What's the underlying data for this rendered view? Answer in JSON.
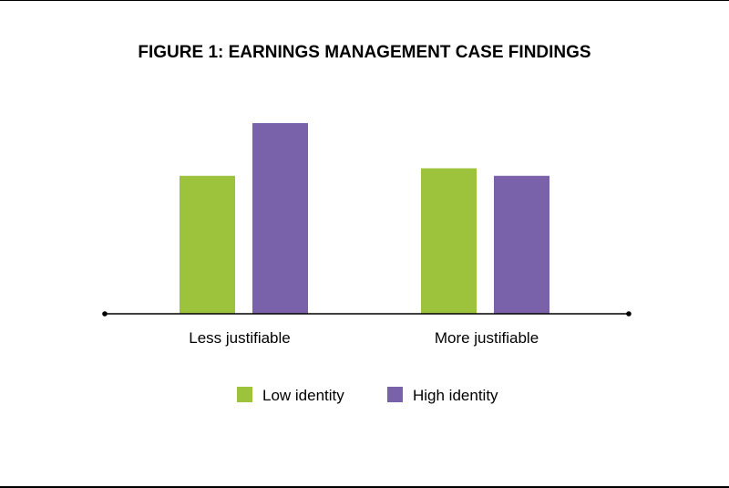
{
  "chart_data": {
    "type": "bar",
    "title": "FIGURE 1: EARNINGS MANAGEMENT CASE FINDINGS",
    "xlabel": "",
    "ylabel": "",
    "categories": [
      "Less justifiable",
      "More justifiable"
    ],
    "series": [
      {
        "name": "Low identity",
        "values": [
          5.5,
          5.8
        ],
        "color": "#9dc23c"
      },
      {
        "name": "High identity",
        "values": [
          7.6,
          5.5
        ],
        "color": "#7a62aa"
      }
    ],
    "ylim": [
      0,
      10
    ],
    "grid": false,
    "legend_position": "bottom-center"
  }
}
